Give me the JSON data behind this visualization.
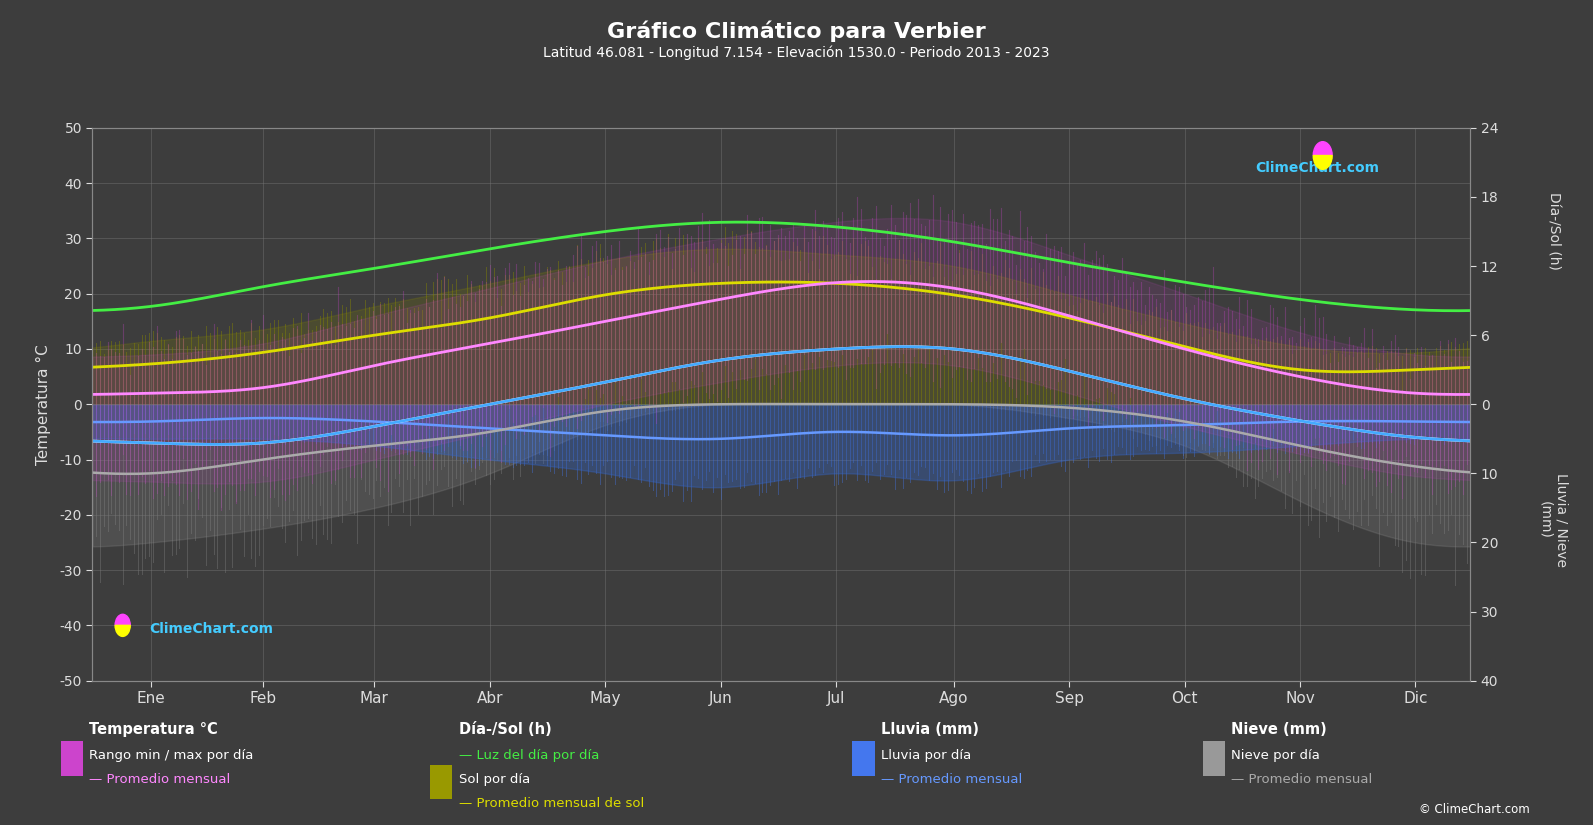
{
  "title": "Gráfico Climático para Verbier",
  "subtitle": "Latitud 46.081 - Longitud 7.154 - Elevación 1530.0 - Periodo 2013 - 2023",
  "months": [
    "Ene",
    "Feb",
    "Mar",
    "Abr",
    "May",
    "Jun",
    "Jul",
    "Ago",
    "Sep",
    "Oct",
    "Nov",
    "Dic"
  ],
  "background_color": "#3d3d3d",
  "plot_bg_color": "#3d3d3d",
  "temp_max_daily": [
    9,
    11,
    16,
    21,
    26,
    30,
    33,
    33,
    27,
    20,
    13,
    9
  ],
  "temp_min_daily": [
    -14,
    -14,
    -10,
    -5,
    0,
    4,
    7,
    7,
    2,
    -4,
    -9,
    -13
  ],
  "temp_avg_max": [
    2,
    3,
    7,
    11,
    15,
    19,
    22,
    21,
    16,
    10,
    5,
    2
  ],
  "temp_avg_min": [
    -7,
    -7,
    -4,
    0,
    4,
    8,
    10,
    10,
    6,
    1,
    -3,
    -6
  ],
  "daylight_hours": [
    8.5,
    10.2,
    11.8,
    13.5,
    15.0,
    15.8,
    15.4,
    14.1,
    12.3,
    10.6,
    9.1,
    8.2
  ],
  "sun_hours_daily_max": [
    5.5,
    6.5,
    8.5,
    10.5,
    12.5,
    13.5,
    13.0,
    12.0,
    9.5,
    7.0,
    5.0,
    4.5
  ],
  "sun_hours_avg": [
    3.5,
    4.5,
    6.0,
    7.5,
    9.5,
    10.5,
    10.5,
    9.5,
    7.5,
    5.0,
    3.0,
    3.0
  ],
  "rain_mm_daily_max": [
    5,
    5,
    6,
    8,
    10,
    12,
    10,
    11,
    8,
    7,
    6,
    5
  ],
  "rain_mm_avg": [
    2.5,
    2.0,
    2.5,
    3.5,
    4.5,
    5.0,
    4.0,
    4.5,
    3.5,
    3.0,
    2.5,
    2.5
  ],
  "snow_mm_daily_max": [
    20,
    18,
    15,
    10,
    3,
    0,
    0,
    0,
    2,
    6,
    14,
    20
  ],
  "snow_mm_avg": [
    10,
    8,
    6,
    4,
    1,
    0,
    0,
    0,
    0.5,
    2.5,
    6,
    9
  ],
  "ylim_temp": [
    -50,
    50
  ],
  "daylight_scale_factor": 3.125,
  "rain_scale_factor": 1.25,
  "colors": {
    "temp_range_fill": "#cc44cc",
    "temp_avg_max_line": "#ff88ff",
    "temp_avg_min_line": "#44ccff",
    "daylight_line": "#44ee44",
    "sun_fill": "#999900",
    "sun_avg_line": "#dddd00",
    "rain_bar": "#4477ee",
    "rain_avg_line": "#6699ff",
    "snow_bar": "#999999",
    "snow_avg_line": "#cccccc",
    "grid": "#666666",
    "text": "#dddddd",
    "axis_line": "#888888"
  }
}
